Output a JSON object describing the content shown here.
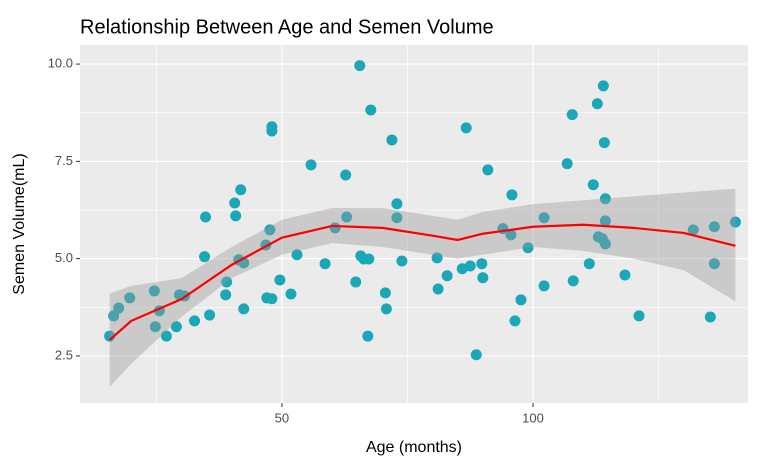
{
  "chart_data": {
    "type": "scatter",
    "title": "Relationship Between Age and Semen Volume",
    "x_label": "Age (months)",
    "y_label": "Semen Volume(mL)",
    "xlim": [
      9.8,
      142.8
    ],
    "ylim": [
      1.29,
      10.49
    ],
    "xticks": [
      50,
      100
    ],
    "yticks": [
      2.5,
      {
        "value": 5.0,
        "label": "5.0"
      },
      7.5,
      {
        "value": 10.0,
        "label": "10.0"
      }
    ],
    "x_minor_ticks": [
      25,
      75,
      125
    ],
    "y_minor_ticks": [
      3.75,
      6.25,
      8.75
    ],
    "grid": true,
    "color": "#1aa7b7",
    "x": [
      15.7,
      16.5,
      17.5,
      19.7,
      24.6,
      24.8,
      25.6,
      27.0,
      29.0,
      29.6,
      30.6,
      32.6,
      34.6,
      34.8,
      35.6,
      38.8,
      39.0,
      40.6,
      40.8,
      41.4,
      41.8,
      42.4,
      42.4,
      46.8,
      47.0,
      47.6,
      48.0,
      48.0,
      48.0,
      49.6,
      51.8,
      53.0,
      55.8,
      58.6,
      60.6,
      62.7,
      62.9,
      64.7,
      65.5,
      65.7,
      66.3,
      67.1,
      67.3,
      67.7,
      70.6,
      70.8,
      71.9,
      72.9,
      72.9,
      73.9,
      80.9,
      81.1,
      82.9,
      85.9,
      86.7,
      87.5,
      88.7,
      89.8,
      90.0,
      91.0,
      94.0,
      95.6,
      95.8,
      96.4,
      97.6,
      99.0,
      102.2,
      102.2,
      106.8,
      107.8,
      108.0,
      111.2,
      112.0,
      112.8,
      113.0,
      113.8,
      114.0,
      114.2,
      114.4,
      114.4,
      114.4,
      118.3,
      121.1,
      131.9,
      135.3,
      136.1,
      136.1,
      140.3
    ],
    "values": [
      3.01,
      3.53,
      3.73,
      3.99,
      4.17,
      3.25,
      3.66,
      3.01,
      3.25,
      4.07,
      4.04,
      3.4,
      5.05,
      6.07,
      3.55,
      4.07,
      4.4,
      6.43,
      6.1,
      4.97,
      6.77,
      3.71,
      4.89,
      5.35,
      3.99,
      5.74,
      3.97,
      8.28,
      8.39,
      4.45,
      4.09,
      5.1,
      7.41,
      4.87,
      5.79,
      7.15,
      6.07,
      4.4,
      9.96,
      5.07,
      4.99,
      3.01,
      4.99,
      8.82,
      4.12,
      3.71,
      8.05,
      6.41,
      6.05,
      4.94,
      5.02,
      4.22,
      4.56,
      4.74,
      8.36,
      4.81,
      2.53,
      4.87,
      4.51,
      7.28,
      5.77,
      5.61,
      6.64,
      3.4,
      3.94,
      5.28,
      6.05,
      4.3,
      7.44,
      8.7,
      4.43,
      4.87,
      6.9,
      8.98,
      5.56,
      5.51,
      9.44,
      7.98,
      5.38,
      6.54,
      5.97,
      4.58,
      3.53,
      5.74,
      3.5,
      5.82,
      4.87,
      5.94
    ],
    "smooth": {
      "color": "#ff0000",
      "band_color": "#999999",
      "x": [
        15.7,
        20,
        30,
        40,
        50,
        60,
        70,
        80,
        85,
        90,
        100,
        110,
        120,
        130,
        140.3
      ],
      "values": [
        2.91,
        3.4,
        3.96,
        4.84,
        5.54,
        5.84,
        5.79,
        5.59,
        5.48,
        5.64,
        5.82,
        5.87,
        5.79,
        5.66,
        5.33
      ],
      "lower": [
        1.7,
        2.3,
        3.5,
        4.5,
        5.1,
        5.4,
        5.3,
        5.1,
        5.0,
        5.1,
        5.3,
        5.2,
        5.0,
        4.7,
        3.9
      ],
      "upper": [
        4.1,
        4.3,
        4.5,
        5.3,
        6.0,
        6.3,
        6.3,
        6.1,
        6.0,
        6.2,
        6.4,
        6.5,
        6.6,
        6.7,
        6.8
      ]
    }
  }
}
